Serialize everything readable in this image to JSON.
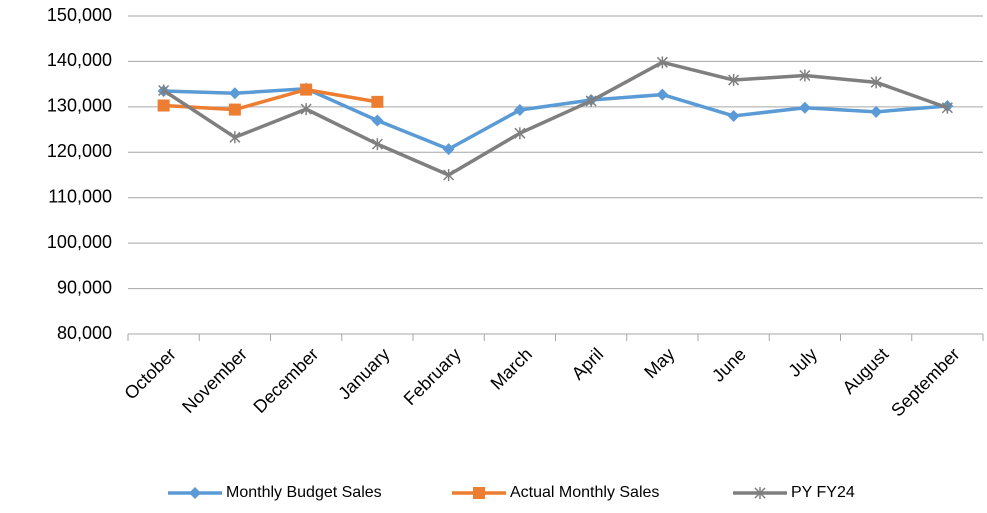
{
  "chart_data": {
    "type": "line",
    "categories": [
      "October",
      "November",
      "December",
      "January",
      "February",
      "March",
      "April",
      "May",
      "June",
      "July",
      "August",
      "September"
    ],
    "series": [
      {
        "name": "Monthly Budget Sales",
        "color": "#5b9bd5",
        "marker": "diamond",
        "values": [
          133500,
          133000,
          134000,
          127000,
          120700,
          129300,
          131500,
          132700,
          128000,
          129800,
          128900,
          130200
        ]
      },
      {
        "name": "Actual Monthly Sales",
        "color": "#ed7d31",
        "marker": "square",
        "values": [
          130300,
          129400,
          133800,
          131100,
          null,
          null,
          null,
          null,
          null,
          null,
          null,
          null
        ]
      },
      {
        "name": "PY FY24",
        "color": "#7f7f7f",
        "marker": "asterisk",
        "values": [
          133600,
          123300,
          129500,
          121800,
          115000,
          124200,
          131300,
          139800,
          135900,
          136900,
          135400,
          129800
        ]
      }
    ],
    "ylim": [
      80000,
      150000
    ],
    "yticks": [
      {
        "value": 80000,
        "label": "80,000"
      },
      {
        "value": 90000,
        "label": "90,000"
      },
      {
        "value": 100000,
        "label": "100,000"
      },
      {
        "value": 110000,
        "label": "110,000"
      },
      {
        "value": 120000,
        "label": "120,000"
      },
      {
        "value": 130000,
        "label": "130,000"
      },
      {
        "value": 140000,
        "label": "140,000"
      },
      {
        "value": 150000,
        "label": "150,000"
      }
    ],
    "grid": true,
    "legend": "bottom"
  }
}
